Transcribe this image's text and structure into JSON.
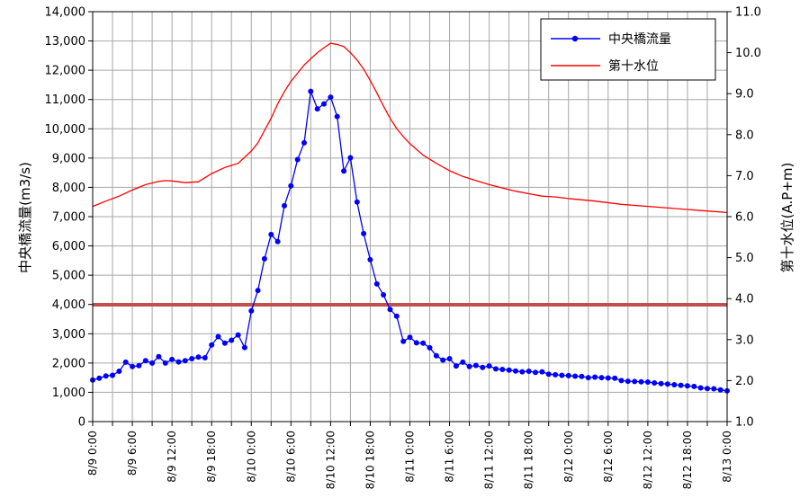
{
  "chart_data": {
    "type": "line",
    "y_left": {
      "label": "中央橋流量(m3/s)",
      "range": [
        0,
        14000
      ],
      "ticks": [
        "0",
        "1,000",
        "2,000",
        "3,000",
        "4,000",
        "5,000",
        "6,000",
        "7,000",
        "8,000",
        "9,000",
        "10,000",
        "11,000",
        "12,000",
        "13,000",
        "14,000"
      ]
    },
    "y_right": {
      "label": "第十水位(A.P+m)",
      "range": [
        1.0,
        11.0
      ],
      "ticks": [
        "1.0",
        "2.0",
        "3.0",
        "4.0",
        "5.0",
        "6.0",
        "7.0",
        "8.0",
        "9.0",
        "10.0",
        "11.0"
      ]
    },
    "x_range_hours": [
      0,
      96
    ],
    "x_tick_labels": [
      "8/9 0:00",
      "8/9 6:00",
      "8/9 12:00",
      "8/9 18:00",
      "8/10 0:00",
      "8/10 6:00",
      "8/10 12:00",
      "8/10 18:00",
      "8/11 0:00",
      "8/11 6:00",
      "8/11 12:00",
      "8/11 18:00",
      "8/12 0:00",
      "8/12 6:00",
      "8/12 12:00",
      "8/12 18:00",
      "8/13 0:00"
    ],
    "grid": true,
    "legend_position": "top-right",
    "threshold": {
      "axis": "right",
      "value": 3.85,
      "color": "#c0504d"
    },
    "series": [
      {
        "name": "中央橋流量",
        "axis": "left",
        "color": "#0000ff",
        "marker": "circle",
        "values": [
          1420,
          1480,
          1560,
          1580,
          1720,
          2030,
          1880,
          1910,
          2080,
          2000,
          2220,
          2000,
          2120,
          2040,
          2080,
          2150,
          2200,
          2180,
          2620,
          2900,
          2680,
          2780,
          2960,
          2530,
          3780,
          4480,
          5560,
          6390,
          6150,
          7370,
          8050,
          8950,
          9520,
          11280,
          10680,
          10850,
          11080,
          10420,
          8560,
          9010,
          7500,
          6420,
          5530,
          4700,
          4330,
          3830,
          3600,
          2740,
          2880,
          2690,
          2680,
          2520,
          2250,
          2100,
          2150,
          1900,
          2030,
          1880,
          1920,
          1850,
          1900,
          1800,
          1780,
          1760,
          1730,
          1700,
          1720,
          1680,
          1700,
          1620,
          1600,
          1580,
          1570,
          1550,
          1540,
          1500,
          1520,
          1500,
          1490,
          1480,
          1400,
          1380,
          1370,
          1360,
          1350,
          1320,
          1300,
          1280,
          1260,
          1240,
          1220,
          1200,
          1150,
          1130,
          1120,
          1080,
          1050
        ]
      },
      {
        "name": "第十水位",
        "axis": "right",
        "color": "#ff0000",
        "marker": "none",
        "points": [
          [
            0,
            6.25
          ],
          [
            2,
            6.38
          ],
          [
            4,
            6.5
          ],
          [
            6,
            6.65
          ],
          [
            8,
            6.78
          ],
          [
            10,
            6.86
          ],
          [
            11,
            6.88
          ],
          [
            12,
            6.87
          ],
          [
            14,
            6.83
          ],
          [
            16,
            6.85
          ],
          [
            18,
            7.05
          ],
          [
            20,
            7.2
          ],
          [
            22,
            7.3
          ],
          [
            23,
            7.45
          ],
          [
            24,
            7.6
          ],
          [
            25,
            7.8
          ],
          [
            26,
            8.1
          ],
          [
            27,
            8.4
          ],
          [
            28,
            8.75
          ],
          [
            29,
            9.05
          ],
          [
            30,
            9.3
          ],
          [
            31,
            9.5
          ],
          [
            32,
            9.7
          ],
          [
            33,
            9.85
          ],
          [
            34,
            10.0
          ],
          [
            35,
            10.12
          ],
          [
            36,
            10.23
          ],
          [
            37,
            10.2
          ],
          [
            38,
            10.15
          ],
          [
            39,
            10.0
          ],
          [
            40,
            9.82
          ],
          [
            41,
            9.6
          ],
          [
            42,
            9.32
          ],
          [
            43,
            9.02
          ],
          [
            44,
            8.7
          ],
          [
            45,
            8.4
          ],
          [
            46,
            8.15
          ],
          [
            47,
            7.95
          ],
          [
            48,
            7.78
          ],
          [
            50,
            7.5
          ],
          [
            52,
            7.3
          ],
          [
            54,
            7.12
          ],
          [
            56,
            6.98
          ],
          [
            58,
            6.88
          ],
          [
            60,
            6.78
          ],
          [
            62,
            6.7
          ],
          [
            64,
            6.62
          ],
          [
            66,
            6.56
          ],
          [
            68,
            6.5
          ],
          [
            70,
            6.48
          ],
          [
            72,
            6.44
          ],
          [
            76,
            6.38
          ],
          [
            80,
            6.3
          ],
          [
            84,
            6.25
          ],
          [
            88,
            6.2
          ],
          [
            92,
            6.15
          ],
          [
            96,
            6.1
          ]
        ]
      }
    ]
  }
}
